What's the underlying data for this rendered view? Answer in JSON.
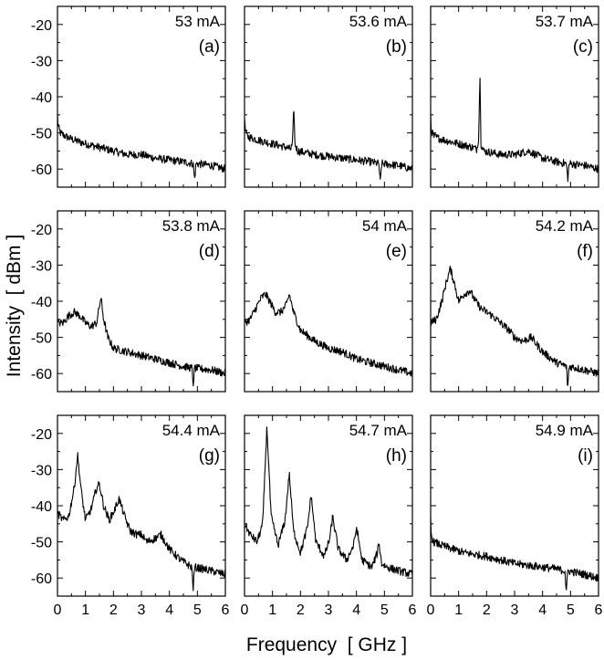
{
  "figure": {
    "xlabel": "Frequency  [ GHz ]",
    "ylabel": "Intensity  [ dBm ]"
  },
  "chart_data": [
    {
      "type": "line",
      "panel": "(a)",
      "label": "53 mA",
      "xlim": [
        0,
        6
      ],
      "ylim": [
        -65,
        -15
      ],
      "xticks": [
        0,
        1,
        2,
        3,
        4,
        5,
        6
      ],
      "yticks": [
        -20,
        -30,
        -40,
        -50,
        -60
      ],
      "series": [
        {
          "x": [
            0,
            0.02,
            0.1,
            0.3,
            0.6,
            1.0,
            1.5,
            2.0,
            2.5,
            3.0,
            3.5,
            4.0,
            4.5,
            4.85,
            4.9,
            4.95,
            5.5,
            6.0
          ],
          "y": [
            -45,
            -48,
            -50,
            -51,
            -52,
            -53,
            -54,
            -55,
            -56,
            -56,
            -57,
            -57.5,
            -58,
            -58.5,
            -63,
            -58.5,
            -59,
            -60
          ]
        }
      ]
    },
    {
      "type": "line",
      "panel": "(b)",
      "label": "53.6 mA",
      "xlim": [
        0,
        6
      ],
      "ylim": [
        -65,
        -15
      ],
      "xticks": [
        0,
        1,
        2,
        3,
        4,
        5,
        6
      ],
      "yticks": [
        -20,
        -30,
        -40,
        -50,
        -60
      ],
      "series": [
        {
          "x": [
            0,
            0.02,
            0.1,
            0.5,
            1.0,
            1.5,
            1.65,
            1.72,
            1.76,
            1.8,
            1.9,
            2.5,
            3.0,
            3.5,
            4.0,
            4.5,
            4.8,
            4.85,
            4.9,
            5.5,
            6.0
          ],
          "y": [
            -45,
            -49,
            -51,
            -52,
            -53,
            -54,
            -54.5,
            -53,
            -42,
            -53,
            -55,
            -56,
            -56.5,
            -57,
            -57.5,
            -58,
            -58.5,
            -64,
            -58.5,
            -59,
            -60
          ]
        }
      ]
    },
    {
      "type": "line",
      "panel": "(c)",
      "label": "53.7 mA",
      "xlim": [
        0,
        6
      ],
      "ylim": [
        -65,
        -15
      ],
      "xticks": [
        0,
        1,
        2,
        3,
        4,
        5,
        6
      ],
      "yticks": [
        -20,
        -30,
        -40,
        -50,
        -60
      ],
      "series": [
        {
          "x": [
            0,
            0.02,
            0.1,
            0.5,
            1.0,
            1.5,
            1.65,
            1.72,
            1.76,
            1.8,
            1.9,
            2.5,
            3.0,
            3.5,
            4.0,
            4.5,
            4.85,
            4.9,
            4.95,
            5.5,
            6.0
          ],
          "y": [
            -45,
            -49,
            -51,
            -52,
            -53,
            -54,
            -54.5,
            -51,
            -33,
            -53,
            -55,
            -56,
            -56,
            -55,
            -57,
            -58,
            -58.5,
            -63,
            -58.5,
            -59,
            -60
          ]
        }
      ]
    },
    {
      "type": "line",
      "panel": "(d)",
      "label": "53.8 mA",
      "xlim": [
        0,
        6
      ],
      "ylim": [
        -65,
        -15
      ],
      "xticks": [
        0,
        1,
        2,
        3,
        4,
        5,
        6
      ],
      "yticks": [
        -20,
        -30,
        -40,
        -50,
        -60
      ],
      "series": [
        {
          "x": [
            0,
            0.2,
            0.4,
            0.6,
            0.8,
            1.0,
            1.2,
            1.4,
            1.55,
            1.65,
            1.8,
            2.0,
            2.5,
            3.0,
            3.5,
            4.0,
            4.5,
            4.8,
            4.85,
            4.9,
            5.5,
            6.0
          ],
          "y": [
            -46,
            -46,
            -44,
            -43,
            -44,
            -46,
            -47,
            -46,
            -39,
            -45,
            -50,
            -53,
            -54,
            -55,
            -56,
            -57,
            -58,
            -58.5,
            -63,
            -58.5,
            -59,
            -60
          ]
        }
      ]
    },
    {
      "type": "line",
      "panel": "(e)",
      "label": "54 mA",
      "xlim": [
        0,
        6
      ],
      "ylim": [
        -65,
        -15
      ],
      "xticks": [
        0,
        1,
        2,
        3,
        4,
        5,
        6
      ],
      "yticks": [
        -20,
        -30,
        -40,
        -50,
        -60
      ],
      "series": [
        {
          "x": [
            0,
            0.2,
            0.4,
            0.6,
            0.75,
            0.9,
            1.1,
            1.3,
            1.5,
            1.6,
            1.75,
            2.0,
            2.5,
            3.0,
            3.5,
            4.0,
            4.5,
            5.0,
            5.5,
            6.0
          ],
          "y": [
            -46,
            -45,
            -42,
            -39,
            -38,
            -40,
            -43,
            -43,
            -41,
            -38,
            -43,
            -48,
            -51,
            -53,
            -54,
            -56,
            -57,
            -58,
            -59,
            -60
          ]
        }
      ]
    },
    {
      "type": "line",
      "panel": "(f)",
      "label": "54.2 mA",
      "xlim": [
        0,
        6
      ],
      "ylim": [
        -65,
        -15
      ],
      "xticks": [
        0,
        1,
        2,
        3,
        4,
        5,
        6
      ],
      "yticks": [
        -20,
        -30,
        -40,
        -50,
        -60
      ],
      "series": [
        {
          "x": [
            0,
            0.2,
            0.4,
            0.55,
            0.7,
            0.85,
            1.0,
            1.2,
            1.4,
            1.6,
            1.8,
            2.0,
            2.2,
            2.5,
            2.8,
            3.0,
            3.3,
            3.6,
            4.0,
            4.5,
            4.85,
            4.9,
            4.95,
            5.5,
            6.0
          ],
          "y": [
            -46,
            -45,
            -40,
            -35,
            -31,
            -35,
            -40,
            -38,
            -37,
            -40,
            -42,
            -43,
            -44,
            -46,
            -48,
            -50,
            -51,
            -50,
            -54,
            -57,
            -58,
            -64,
            -58,
            -59,
            -60
          ]
        }
      ]
    },
    {
      "type": "line",
      "panel": "(g)",
      "label": "54.4 mA",
      "xlim": [
        0,
        6
      ],
      "ylim": [
        -65,
        -15
      ],
      "xticks": [
        0,
        1,
        2,
        3,
        4,
        5,
        6
      ],
      "yticks": [
        -20,
        -30,
        -40,
        -50,
        -60
      ],
      "series": [
        {
          "x": [
            0,
            0.2,
            0.4,
            0.6,
            0.72,
            0.85,
            1.0,
            1.2,
            1.4,
            1.5,
            1.65,
            1.85,
            2.05,
            2.2,
            2.4,
            2.6,
            2.85,
            3.0,
            3.2,
            3.5,
            3.7,
            4.0,
            4.4,
            4.8,
            4.85,
            4.9,
            5.5,
            6.0
          ],
          "y": [
            -42,
            -44,
            -43,
            -35,
            -26,
            -36,
            -44,
            -41,
            -35,
            -34,
            -40,
            -44,
            -41,
            -38,
            -43,
            -47,
            -48,
            -48,
            -50,
            -49,
            -48,
            -52,
            -55,
            -57,
            -63,
            -57,
            -58,
            -59
          ]
        }
      ]
    },
    {
      "type": "line",
      "panel": "(h)",
      "label": "54.7 mA",
      "xlim": [
        0,
        6
      ],
      "ylim": [
        -65,
        -15
      ],
      "xticks": [
        0,
        1,
        2,
        3,
        4,
        5,
        6
      ],
      "yticks": [
        -20,
        -30,
        -40,
        -50,
        -60
      ],
      "series": [
        {
          "x": [
            0,
            0.2,
            0.45,
            0.65,
            0.8,
            0.95,
            1.2,
            1.45,
            1.6,
            1.75,
            2.0,
            2.25,
            2.38,
            2.55,
            2.85,
            3.05,
            3.15,
            3.35,
            3.65,
            3.9,
            4.0,
            4.2,
            4.55,
            4.75,
            4.8,
            4.9,
            5.1,
            5.5,
            6.0
          ],
          "y": [
            -45,
            -48,
            -50,
            -45,
            -18,
            -43,
            -51,
            -44,
            -31,
            -47,
            -53,
            -46,
            -37,
            -50,
            -54,
            -49,
            -43,
            -52,
            -55,
            -51,
            -46,
            -55,
            -57,
            -53,
            -50,
            -56,
            -57,
            -58,
            -59
          ]
        }
      ]
    },
    {
      "type": "line",
      "panel": "(i)",
      "label": "54.9 mA",
      "xlim": [
        0,
        6
      ],
      "ylim": [
        -65,
        -15
      ],
      "xticks": [
        0,
        1,
        2,
        3,
        4,
        5,
        6
      ],
      "yticks": [
        -20,
        -30,
        -40,
        -50,
        -60
      ],
      "series": [
        {
          "x": [
            0,
            0.02,
            0.1,
            0.4,
            0.8,
            1.2,
            1.6,
            2.0,
            2.5,
            3.0,
            3.5,
            4.0,
            4.5,
            4.8,
            4.85,
            4.9,
            5.5,
            6.0
          ],
          "y": [
            -44,
            -48,
            -50,
            -51,
            -52,
            -53,
            -53.5,
            -54,
            -55,
            -56,
            -56.5,
            -57,
            -57.5,
            -58,
            -64,
            -58,
            -59,
            -60
          ]
        }
      ]
    }
  ]
}
